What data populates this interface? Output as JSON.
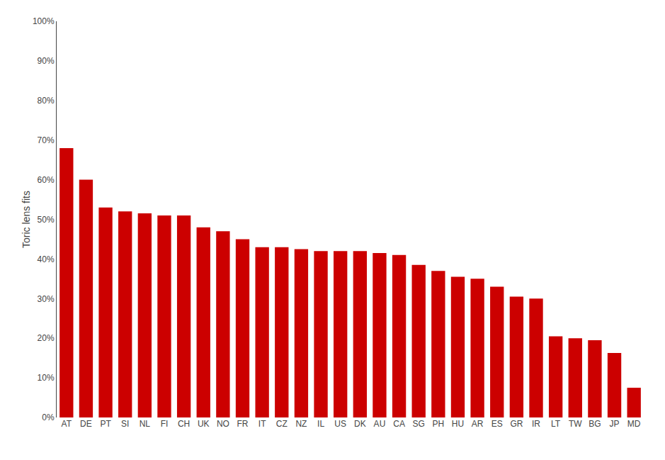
{
  "chart_data": {
    "type": "bar",
    "categories": [
      "AT",
      "DE",
      "PT",
      "SI",
      "NL",
      "FI",
      "CH",
      "UK",
      "NO",
      "FR",
      "IT",
      "CZ",
      "NZ",
      "IL",
      "US",
      "DK",
      "AU",
      "CA",
      "SG",
      "PH",
      "HU",
      "AR",
      "ES",
      "GR",
      "IR",
      "LT",
      "TW",
      "BG",
      "JP",
      "MD"
    ],
    "values": [
      0.68,
      0.6,
      0.53,
      0.52,
      0.515,
      0.51,
      0.51,
      0.48,
      0.47,
      0.45,
      0.43,
      0.43,
      0.425,
      0.42,
      0.42,
      0.42,
      0.415,
      0.41,
      0.385,
      0.37,
      0.355,
      0.35,
      0.33,
      0.305,
      0.3,
      0.205,
      0.2,
      0.195,
      0.163,
      0.075
    ],
    "color": "#cc0000",
    "ylabel": "Toric lens fits",
    "ylim": [
      0,
      1.0
    ],
    "yticks": [
      {
        "value": 0.0,
        "label": "0%"
      },
      {
        "value": 0.1,
        "label": "10%"
      },
      {
        "value": 0.2,
        "label": "20%"
      },
      {
        "value": 0.3,
        "label": "30%"
      },
      {
        "value": 0.4,
        "label": "40%"
      },
      {
        "value": 0.5,
        "label": "50%"
      },
      {
        "value": 0.6,
        "label": "60%"
      },
      {
        "value": 0.7,
        "label": "70%"
      },
      {
        "value": 0.8,
        "label": "80%"
      },
      {
        "value": 0.9,
        "label": "90%"
      },
      {
        "value": 1.0,
        "label": "100%"
      }
    ],
    "grid": false
  }
}
